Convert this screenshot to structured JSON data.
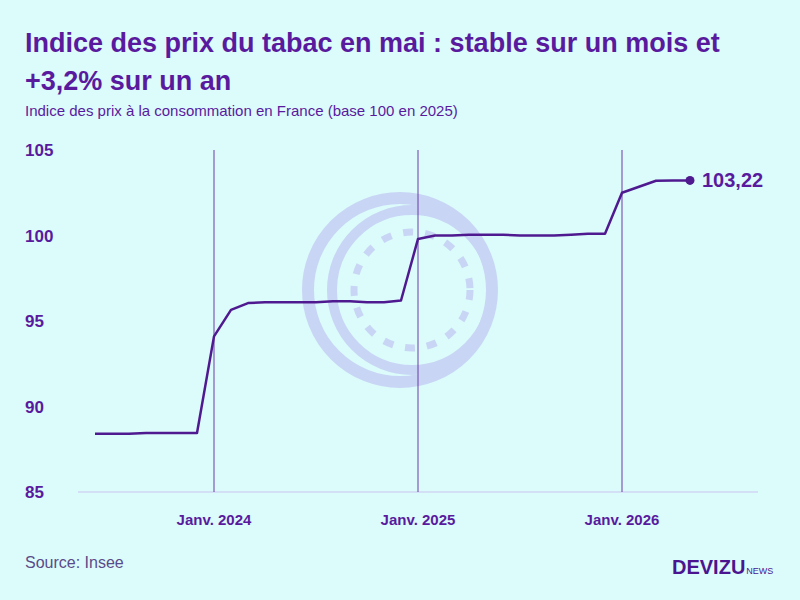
{
  "chart_data": {
    "type": "line",
    "title": "Indice des prix du tabac en mai : stable sur un mois et +3,2% sur un an",
    "subtitle": "Indice des prix à la consommation en France (base 100 en 2025)",
    "source": "Source: Insee",
    "brand": "DEVIZU",
    "brand_suffix": "NEWS",
    "color": "#4f1a8f",
    "grid": true,
    "marker": "end",
    "x": [
      "2023-06",
      "2023-07",
      "2023-08",
      "2023-09",
      "2023-10",
      "2023-11",
      "2023-12",
      "2024-01",
      "2024-02",
      "2024-03",
      "2024-04",
      "2024-05",
      "2024-06",
      "2024-07",
      "2024-08",
      "2024-09",
      "2024-10",
      "2024-11",
      "2024-12",
      "2025-01",
      "2025-02",
      "2025-03",
      "2025-04",
      "2025-05",
      "2025-06",
      "2025-07",
      "2025-08",
      "2025-09",
      "2025-10",
      "2025-11",
      "2025-12",
      "2026-01",
      "2026-02",
      "2026-03",
      "2026-04",
      "2026-05"
    ],
    "values": [
      88.4,
      88.4,
      88.4,
      88.45,
      88.45,
      88.45,
      88.45,
      94.1,
      95.65,
      96.05,
      96.1,
      96.1,
      96.1,
      96.1,
      96.15,
      96.15,
      96.1,
      96.1,
      96.2,
      99.8,
      100.0,
      100.0,
      100.05,
      100.05,
      100.05,
      100.0,
      100.0,
      100.0,
      100.05,
      100.1,
      100.1,
      102.5,
      102.85,
      103.2,
      103.22,
      103.22
    ],
    "annotations": [
      {
        "x": "2026-05",
        "value": 103.22,
        "label": "103,22"
      }
    ],
    "xlim": [
      "2023-05",
      "2026-09"
    ],
    "xticks": [
      {
        "value": "2024-01",
        "label": "Janv. 2024"
      },
      {
        "value": "2025-01",
        "label": "Janv. 2025"
      },
      {
        "value": "2026-01",
        "label": "Janv. 2026"
      }
    ],
    "ylim": [
      85,
      105
    ],
    "yticks": [
      85,
      90,
      95,
      100,
      105
    ]
  }
}
